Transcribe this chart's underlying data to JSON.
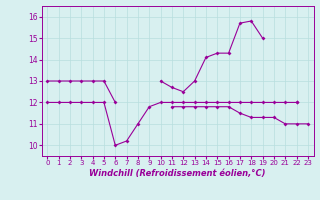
{
  "hours": [
    0,
    1,
    2,
    3,
    4,
    5,
    6,
    7,
    8,
    9,
    10,
    11,
    12,
    13,
    14,
    15,
    16,
    17,
    18,
    19,
    20,
    21,
    22,
    23
  ],
  "line1": [
    13,
    13,
    13,
    13,
    13,
    13,
    12,
    null,
    null,
    null,
    13,
    12.7,
    12.5,
    13,
    14.1,
    14.3,
    14.3,
    15.7,
    15.8,
    15,
    null,
    null,
    12,
    null
  ],
  "line2": [
    12,
    12,
    12,
    12,
    12,
    12,
    10,
    10.2,
    11,
    11.8,
    12,
    12,
    12,
    12,
    12,
    12,
    12,
    12,
    12,
    12,
    12,
    12,
    12,
    null
  ],
  "line3": [
    null,
    null,
    null,
    null,
    null,
    null,
    null,
    null,
    null,
    null,
    null,
    11.8,
    11.8,
    11.8,
    11.8,
    11.8,
    11.8,
    11.5,
    11.3,
    11.3,
    11.3,
    11,
    11,
    11
  ],
  "xlabel": "Windchill (Refroidissement éolien,°C)",
  "yticks": [
    10,
    11,
    12,
    13,
    14,
    15,
    16
  ],
  "xticks": [
    0,
    1,
    2,
    3,
    4,
    5,
    6,
    7,
    8,
    9,
    10,
    11,
    12,
    13,
    14,
    15,
    16,
    17,
    18,
    19,
    20,
    21,
    22,
    23
  ],
  "line_color": "#990099",
  "bg_color": "#d8f0f0",
  "grid_color": "#b8dede",
  "ylim": [
    9.5,
    16.5
  ],
  "xlim": [
    -0.5,
    23.5
  ]
}
